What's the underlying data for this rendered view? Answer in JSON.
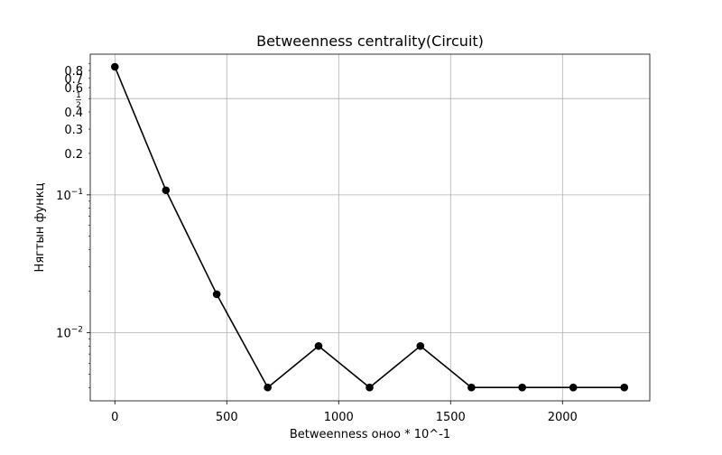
{
  "chart_data": {
    "type": "line",
    "title": "Betweenness centrality(Circuit)",
    "xlabel": "Betweenness оноо * 10^-1",
    "ylabel": "Нягтын функц",
    "x": [
      0,
      228,
      455,
      683,
      910,
      1138,
      1365,
      1593,
      1820,
      2048,
      2276
    ],
    "series": [
      {
        "values": [
          0.85,
          0.108,
          0.019,
          0.004,
          0.008,
          0.004,
          0.008,
          0.004,
          0.004,
          0.004,
          0.004
        ],
        "color": "#000000",
        "marker": "circle"
      }
    ],
    "xlim": [
      -110,
      2390
    ],
    "ylim": [
      0.0032,
      1.05
    ],
    "yscale": "log",
    "grid": true,
    "x_ticks": [
      {
        "value": 0,
        "label": "0"
      },
      {
        "value": 500,
        "label": "500"
      },
      {
        "value": 1000,
        "label": "1000"
      },
      {
        "value": 1500,
        "label": "1500"
      },
      {
        "value": 2000,
        "label": "2000"
      }
    ],
    "y_major_ticks": [
      {
        "value": 0.1,
        "base": "10",
        "exp": "−1"
      },
      {
        "value": 0.01,
        "base": "10",
        "exp": "−2"
      }
    ],
    "y_labeled_minor_ticks": [
      {
        "value": 0.8,
        "label": "0.8"
      },
      {
        "value": 0.7,
        "label": "0.7"
      },
      {
        "value": 0.6,
        "label": "0.6"
      },
      {
        "value": 0.4,
        "label": "0.4"
      },
      {
        "value": 0.3,
        "label": "0.3"
      },
      {
        "value": 0.2,
        "label": "0.2"
      }
    ],
    "y_fraction_tick": {
      "value": 0.5,
      "numerator": "1",
      "denominator": "2"
    },
    "y_unlabeled_minor_ticks": [
      0.9,
      0.09,
      0.08,
      0.07,
      0.06,
      0.05,
      0.04,
      0.03,
      0.02,
      0.009,
      0.008,
      0.007,
      0.006,
      0.005,
      0.004
    ]
  }
}
